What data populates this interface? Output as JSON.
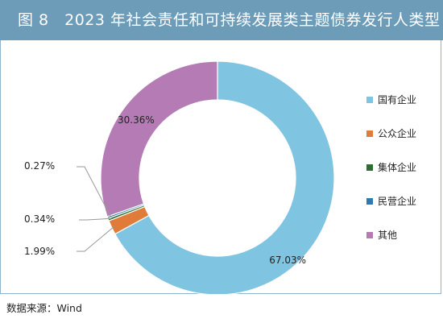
{
  "title": "图 8　2023 年社会责任和可持续发展类主题债券发行人类型",
  "source": "数据来源：Wind",
  "colors": {
    "title_bg": "#6c9cb8",
    "frame": "#8fb5cd"
  },
  "chart_data": {
    "type": "pie",
    "style": "donut",
    "legend_position": "right",
    "series": [
      {
        "name": "国有企业",
        "value": 67.03,
        "label": "67.03%",
        "color": "#7fc4e0"
      },
      {
        "name": "公众企业",
        "value": 1.99,
        "label": "1.99%",
        "color": "#e07b39"
      },
      {
        "name": "集体企业",
        "value": 0.34,
        "label": "0.34%",
        "color": "#2e6e35"
      },
      {
        "name": "民营企业",
        "value": 0.27,
        "label": "0.27%",
        "color": "#2b7bb0"
      },
      {
        "name": "其他",
        "value": 30.36,
        "label": "30.36%",
        "color": "#b57bb5"
      }
    ]
  }
}
